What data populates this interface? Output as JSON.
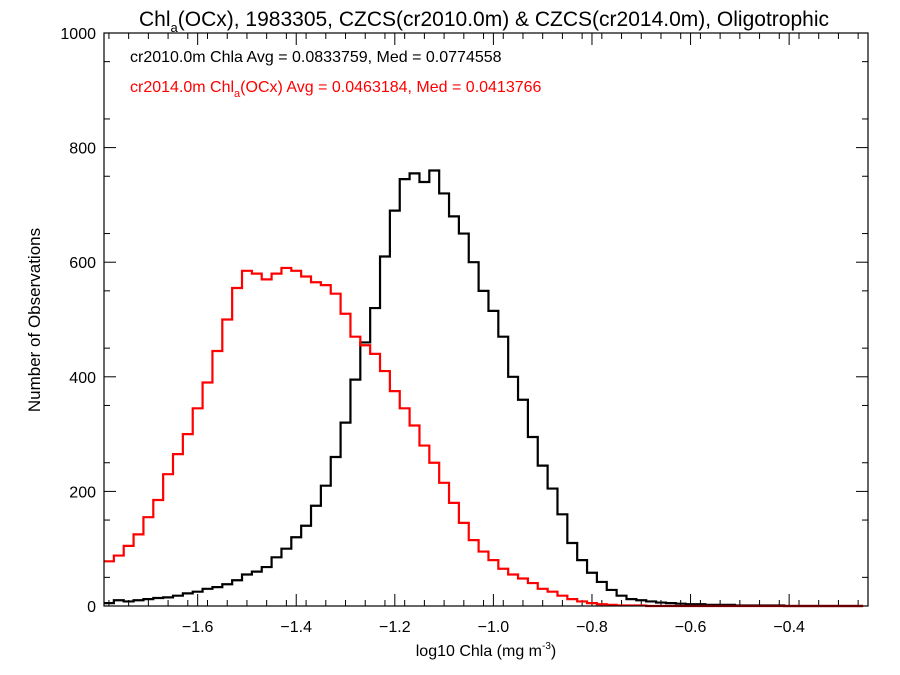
{
  "chart_data": {
    "type": "line",
    "title_pre": "Chl",
    "title_sub": "a",
    "title_post": "(OCx), 1983305, CZCS(cr2010.0m) & CZCS(cr2014.0m), Oligotrophic",
    "xlabel_pre": "log10 Chla (mg m",
    "xlabel_sup": "-3",
    "xlabel_post": ")",
    "ylabel": "Number of Observations",
    "xlim": [
      -1.79,
      -0.24
    ],
    "ylim": [
      0,
      1000
    ],
    "x_ticks": [
      -1.6,
      -1.4,
      -1.2,
      -1.0,
      -0.8,
      -0.6,
      -0.4
    ],
    "x_tick_labels": [
      "−1.6",
      "−1.4",
      "−1.2",
      "−1.0",
      "−0.8",
      "−0.6",
      "−0.4"
    ],
    "y_ticks": [
      0,
      200,
      400,
      600,
      800,
      1000
    ],
    "y_tick_labels": [
      "0",
      "200",
      "400",
      "600",
      "800",
      "1000"
    ],
    "series": [
      {
        "name": "cr2010.0m Chla",
        "color": "#000000",
        "stats_text": "cr2010.0m Chla Avg = 0.0833759, Med = 0.0774558",
        "x": [
          -1.78,
          -1.76,
          -1.74,
          -1.72,
          -1.7,
          -1.68,
          -1.66,
          -1.64,
          -1.62,
          -1.6,
          -1.58,
          -1.56,
          -1.54,
          -1.52,
          -1.5,
          -1.48,
          -1.46,
          -1.44,
          -1.42,
          -1.4,
          -1.38,
          -1.36,
          -1.34,
          -1.32,
          -1.3,
          -1.28,
          -1.26,
          -1.24,
          -1.22,
          -1.2,
          -1.18,
          -1.16,
          -1.14,
          -1.12,
          -1.1,
          -1.08,
          -1.06,
          -1.04,
          -1.02,
          -1.0,
          -0.98,
          -0.96,
          -0.94,
          -0.92,
          -0.9,
          -0.88,
          -0.86,
          -0.84,
          -0.82,
          -0.8,
          -0.78,
          -0.76,
          -0.74,
          -0.72,
          -0.7,
          -0.68,
          -0.66,
          -0.64,
          -0.62,
          -0.6,
          -0.58,
          -0.56,
          -0.54,
          -0.52,
          -0.5,
          -0.48,
          -0.46,
          -0.44,
          -0.42,
          -0.4,
          -0.38,
          -0.36,
          -0.34,
          -0.32,
          -0.3,
          -0.28,
          -0.26
        ],
        "values": [
          5,
          10,
          8,
          10,
          12,
          14,
          15,
          18,
          22,
          25,
          30,
          33,
          38,
          45,
          55,
          60,
          68,
          85,
          100,
          120,
          140,
          175,
          210,
          260,
          320,
          395,
          460,
          520,
          610,
          690,
          745,
          755,
          740,
          760,
          720,
          680,
          650,
          600,
          550,
          515,
          470,
          400,
          360,
          295,
          245,
          205,
          160,
          110,
          80,
          58,
          42,
          28,
          18,
          12,
          10,
          8,
          6,
          5,
          4,
          3,
          3,
          2,
          2,
          2,
          1,
          1,
          1,
          1,
          1,
          0,
          0,
          0,
          0,
          0,
          0,
          0,
          0
        ]
      },
      {
        "name": "cr2014.0m Chla(OCx)",
        "color": "#ff0000",
        "stats_pre": "cr2014.0m Chl",
        "stats_sub": "a",
        "stats_post": "(OCx) Avg = 0.0463184, Med = 0.0413766",
        "x": [
          -1.78,
          -1.76,
          -1.74,
          -1.72,
          -1.7,
          -1.68,
          -1.66,
          -1.64,
          -1.62,
          -1.6,
          -1.58,
          -1.56,
          -1.54,
          -1.52,
          -1.5,
          -1.48,
          -1.46,
          -1.44,
          -1.42,
          -1.4,
          -1.38,
          -1.36,
          -1.34,
          -1.32,
          -1.3,
          -1.28,
          -1.26,
          -1.24,
          -1.22,
          -1.2,
          -1.18,
          -1.16,
          -1.14,
          -1.12,
          -1.1,
          -1.08,
          -1.06,
          -1.04,
          -1.02,
          -1.0,
          -0.98,
          -0.96,
          -0.94,
          -0.92,
          -0.9,
          -0.88,
          -0.86,
          -0.84,
          -0.82,
          -0.8,
          -0.78,
          -0.76,
          -0.74,
          -0.72,
          -0.7,
          -0.68,
          -0.66,
          -0.64,
          -0.62,
          -0.6,
          -0.58,
          -0.56,
          -0.54,
          -0.52,
          -0.5,
          -0.48,
          -0.46,
          -0.44,
          -0.42,
          -0.4,
          -0.38,
          -0.36,
          -0.34,
          -0.32,
          -0.3,
          -0.28,
          -0.26
        ],
        "values": [
          78,
          88,
          105,
          125,
          155,
          185,
          230,
          265,
          300,
          345,
          390,
          445,
          500,
          555,
          585,
          580,
          570,
          580,
          590,
          585,
          575,
          565,
          560,
          545,
          510,
          470,
          455,
          440,
          410,
          375,
          345,
          315,
          280,
          250,
          215,
          180,
          145,
          115,
          95,
          80,
          65,
          55,
          48,
          40,
          30,
          25,
          18,
          12,
          8,
          5,
          3,
          2,
          1,
          1,
          1,
          0,
          0,
          0,
          0,
          0,
          0,
          0,
          0,
          0,
          0,
          0,
          0,
          0,
          0,
          0,
          0,
          0,
          0,
          0,
          0,
          0,
          0
        ]
      }
    ]
  }
}
